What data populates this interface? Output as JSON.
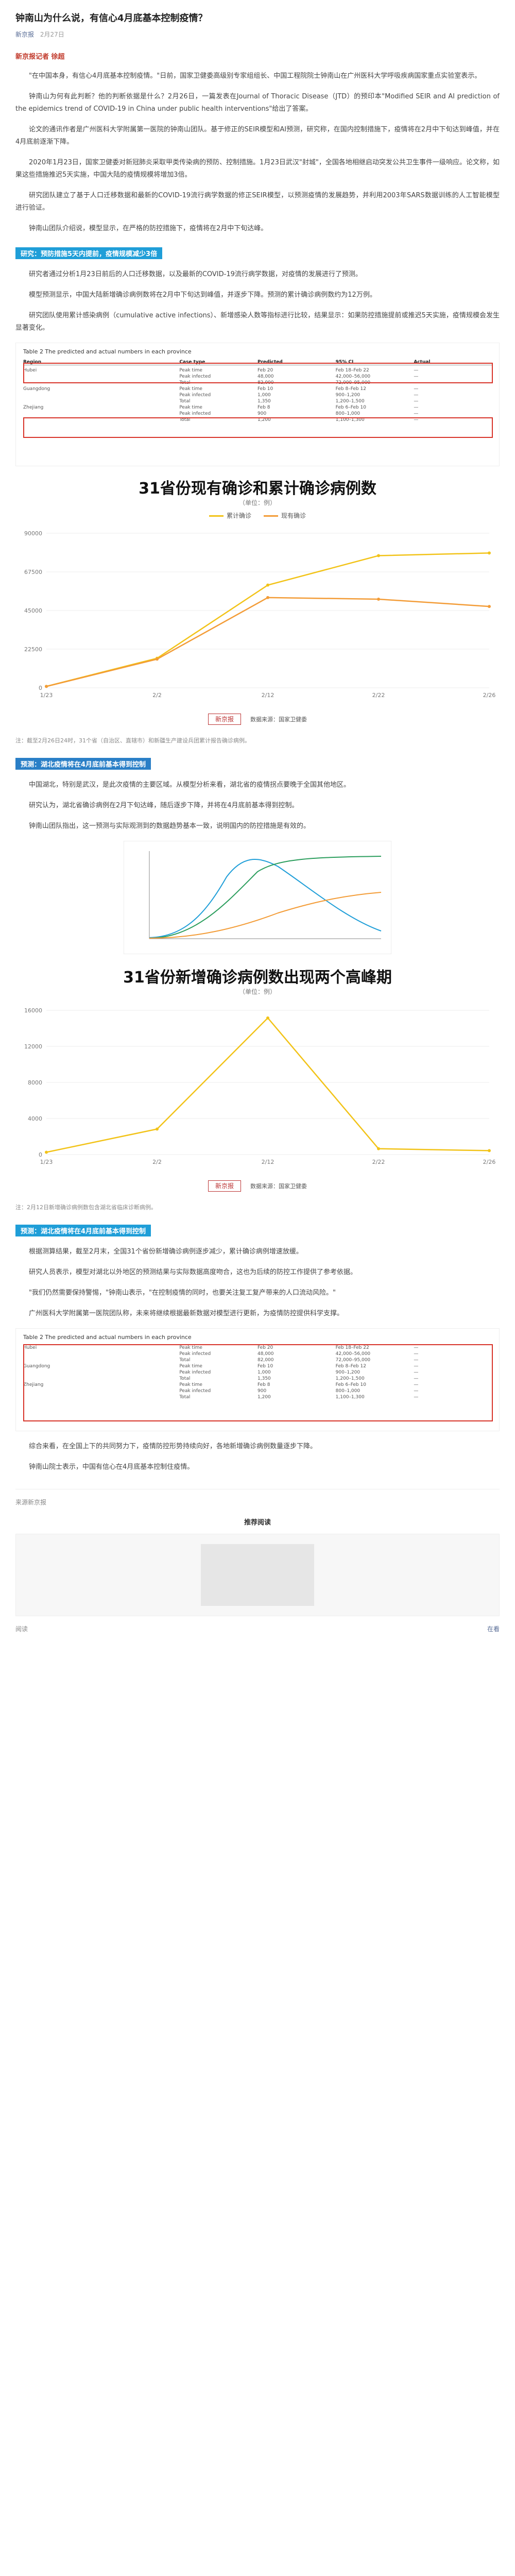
{
  "article": {
    "title": "钟南山为什么说，有信心4月底基本控制疫情？",
    "author": "新京报",
    "date": "2月27日",
    "byline": "新京报记者 徐超",
    "paragraphs": [
      "\"在中国本身，有信心4月底基本控制疫情。\"日前，国家卫健委高级别专家组组长、中国工程院院士钟南山在广州医科大学呼吸疾病国家重点实验室表示。",
      "钟南山为何有此判断？他的判断依据是什么？2月26日，一篇发表在Journal of Thoracic Disease（JTD）的预印本\"Modified SEIR and AI prediction of the epidemics trend of COVID-19 in China under public health interventions\"给出了答案。",
      "论文的通讯作者是广州医科大学附属第一医院的钟南山团队。基于修正的SEIR模型和AI预测，研究称，在国内控制措施下，疫情将在2月中下旬达到峰值，并在4月底前逐渐下降。",
      "2020年1月23日，国家卫健委对新冠肺炎采取甲类传染病的预防、控制措施。1月23日武汉\"封城\"，全国各地相继启动突发公共卫生事件一级响应。论文称，如果这些措施推迟5天实施，中国大陆的疫情规模将增加3倍。",
      "研究团队建立了基于人口迁移数据和最新的COVID-19流行病学数据的修正SEIR模型，以预测疫情的发展趋势，并利用2003年SARS数据训练的人工智能模型进行验证。",
      "钟南山团队介绍说，模型显示，在严格的防控措施下，疫情将在2月中下旬达峰。"
    ],
    "heading1": "研究：预防措施5天内提前，疫情规模减少3倍",
    "paragraphs2": [
      "研究者通过分析1月23日前后的人口迁移数据，以及最新的COVID-19流行病学数据，对疫情的发展进行了预测。",
      "模型预测显示，中国大陆新增确诊病例数将在2月中下旬达到峰值，并逐步下降。预测的累计确诊病例数约为12万例。",
      "研究团队使用累计感染病例（cumulative active infections）、新增感染人数等指标进行比较，结果显示：如果防控措施提前或推迟5天实施，疫情规模会发生显著变化。"
    ],
    "heading2": "预测：湖北疫情将在4月底前基本得到控制",
    "paragraphs3": [
      "中国湖北，特别是武汉，是此次疫情的主要区域。从模型分析来看，湖北省的疫情拐点要晚于全国其他地区。",
      "研究认为，湖北省确诊病例在2月下旬达峰，随后逐步下降，并将在4月底前基本得到控制。",
      "钟南山团队指出，这一预测与实际观测到的数据趋势基本一致，说明国内的防控措施是有效的。"
    ],
    "heading3": "预测：湖北疫情将在4月底前基本得到控制",
    "paragraphs4": [
      "根据测算结果，截至2月末，全国31个省份新增确诊病例逐步减少，累计确诊病例增速放缓。",
      "研究人员表示，模型对湖北以外地区的预测结果与实际数据高度吻合，这也为后续的防控工作提供了参考依据。",
      "\"我们仍然需要保持警惕，\"钟南山表示，\"在控制疫情的同时，也要关注复工复产带来的人口流动风险。\"",
      "广州医科大学附属第一医院团队称，未来将继续根据最新数据对模型进行更新，为疫情防控提供科学支撑。"
    ],
    "paragraphs5": [
      "综合来看，在全国上下的共同努力下，疫情防控形势持续向好，各地新增确诊病例数量逐步下降。",
      "钟南山院士表示，中国有信心在4月底基本控制住疫情。"
    ]
  },
  "table_fig": {
    "title": "Table 2 The predicted and actual numbers in each province",
    "headers": [
      "Region",
      "Case type",
      "Predicted",
      "95% CI",
      "Actual"
    ],
    "rows": [
      [
        "Hubei",
        "Peak time",
        "Feb 20",
        "Feb 18–Feb 22",
        "—"
      ],
      [
        "",
        "Peak infected",
        "48,000",
        "42,000–56,000",
        "—"
      ],
      [
        "",
        "Total",
        "82,000",
        "72,000–95,000",
        "—"
      ],
      [
        "Guangdong",
        "Peak time",
        "Feb 10",
        "Feb 8–Feb 12",
        "—"
      ],
      [
        "",
        "Peak infected",
        "1,000",
        "900–1,200",
        "—"
      ],
      [
        "",
        "Total",
        "1,350",
        "1,200–1,500",
        "—"
      ],
      [
        "Zhejiang",
        "Peak time",
        "Feb 8",
        "Feb 6–Feb 10",
        "—"
      ],
      [
        "",
        "Peak infected",
        "900",
        "800–1,000",
        "—"
      ],
      [
        "",
        "Total",
        "1,200",
        "1,100–1,300",
        "—"
      ]
    ]
  },
  "chart1": {
    "title": "31省份现有确诊和累计确诊病例数",
    "subtitle": "（单位：例）",
    "footer": "数据来源：国家卫健委",
    "logo": "新京报"
  },
  "chart2": {
    "title": "31省份新增确诊病例数出现两个高峰期",
    "subtitle": "（单位：例）",
    "footer": "数据来源：国家卫健委",
    "logo": "新京报"
  },
  "captions": {
    "chart1": "注：截至2月26日24时，31个省（自治区、直辖市）和新疆生产建设兵团累计报告确诊病例。",
    "chart2": "注：2月12日新增确诊病例数包含湖北省临床诊断病例。"
  },
  "bottom": {
    "label": "来源新京报",
    "center": "推荐阅读",
    "read": "阅读",
    "like": "在看"
  },
  "colors": {
    "accent": "#1f9ed8",
    "red": "#d8342a",
    "yellow": "#f2c318",
    "orange": "#f39c37"
  },
  "chart_data": [
    {
      "type": "line",
      "title": "31省份现有确诊和累计确诊病例数",
      "categories": [
        "1/23",
        "2/2",
        "2/12",
        "2/22",
        "2/26"
      ],
      "series": [
        {
          "name": "累计确诊",
          "values": [
            830,
            17205,
            59804,
            76936,
            78497
          ]
        },
        {
          "name": "现有确诊",
          "values": [
            780,
            16678,
            52526,
            51606,
            47365
          ]
        }
      ],
      "ylim": [
        0,
        90000
      ],
      "legend": "top-center"
    },
    {
      "type": "line",
      "title": "31省份新增确诊病例数出现两个高峰期",
      "categories": [
        "1/23",
        "2/2",
        "2/12",
        "2/22",
        "2/26"
      ],
      "series": [
        {
          "name": "新增确诊",
          "values": [
            259,
            2829,
            15152,
            648,
            433
          ]
        }
      ],
      "ylim": [
        0,
        16000
      ],
      "legend": "none"
    }
  ]
}
